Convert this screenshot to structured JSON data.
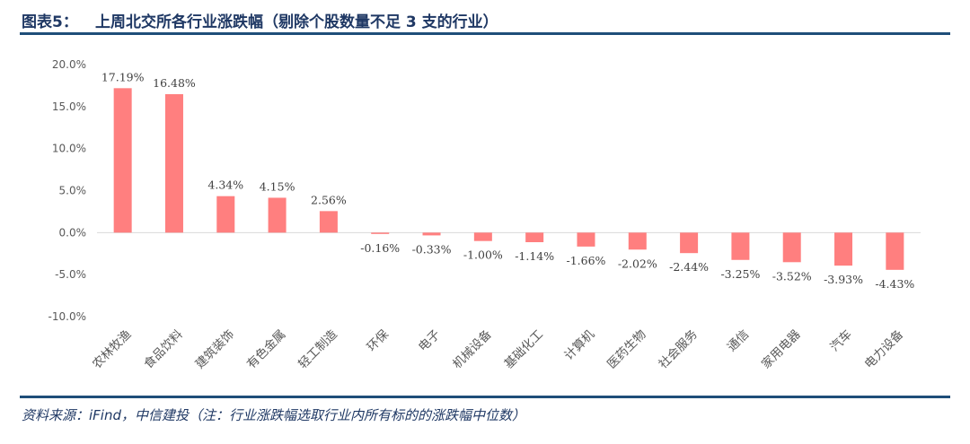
{
  "header": {
    "figure_label": "图表5：",
    "title": "上周北交所各行业涨跌幅（剔除个股数量不足 3 支的行业）"
  },
  "footer": {
    "source": "资料来源：iFind，中信建投（注：行业涨跌幅选取行业内所有标的的涨跌幅中位数）"
  },
  "colors": {
    "bar": "#ff7f7f",
    "rule": "#1f4e79",
    "title": "#1f3864"
  },
  "chart_data": {
    "type": "bar",
    "title": "",
    "xlabel": "",
    "ylabel": "",
    "ylim": [
      -10,
      20
    ],
    "yticks": [
      20,
      15,
      10,
      5,
      0,
      -5,
      -10
    ],
    "ytick_labels": [
      "20.0%",
      "15.0%",
      "10.0%",
      "5.0%",
      "0.0%",
      "-5.0%",
      "-10.0%"
    ],
    "grid": false,
    "categories": [
      "农林牧渔",
      "食品饮料",
      "建筑装饰",
      "有色金属",
      "轻工制造",
      "环保",
      "电子",
      "机械设备",
      "基础化工",
      "计算机",
      "医药生物",
      "社会服务",
      "通信",
      "家用电器",
      "汽车",
      "电力设备"
    ],
    "values": [
      17.19,
      16.48,
      4.34,
      4.15,
      2.56,
      -0.16,
      -0.33,
      -1.0,
      -1.14,
      -1.66,
      -2.02,
      -2.44,
      -3.25,
      -3.52,
      -3.93,
      -4.43
    ],
    "value_labels": [
      "17.19%",
      "16.48%",
      "4.34%",
      "4.15%",
      "2.56%",
      "-0.16%",
      "-0.33%",
      "-1.00%",
      "-1.14%",
      "-1.66%",
      "-2.02%",
      "-2.44%",
      "-3.25%",
      "-3.52%",
      "-3.93%",
      "-4.43%"
    ]
  }
}
